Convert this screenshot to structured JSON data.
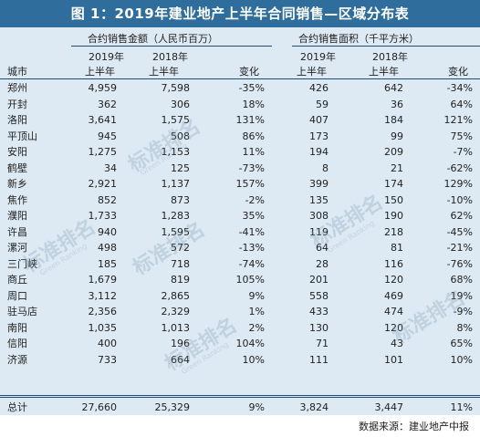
{
  "title": "图 1：2019年建业地产上半年合同销售—区域分布表",
  "headers": {
    "amount_group": "合约销售金额（人民币百万）",
    "area_group": "合约销售面积（千平方米）",
    "col_2019_year": "2019年",
    "col_2018_year": "2018年",
    "half_year": "上半年",
    "city": "城市",
    "change": "变化"
  },
  "rows": [
    {
      "city": "郑州",
      "a2019": "4,959",
      "a2018": "7,598",
      "achg": "-35%",
      "s2019": "426",
      "s2018": "642",
      "schg": "-34%"
    },
    {
      "city": "开封",
      "a2019": "362",
      "a2018": "306",
      "achg": "18%",
      "s2019": "59",
      "s2018": "36",
      "schg": "64%"
    },
    {
      "city": "洛阳",
      "a2019": "3,641",
      "a2018": "1,575",
      "achg": "131%",
      "s2019": "407",
      "s2018": "184",
      "schg": "121%"
    },
    {
      "city": "平顶山",
      "a2019": "945",
      "a2018": "508",
      "achg": "86%",
      "s2019": "173",
      "s2018": "99",
      "schg": "75%"
    },
    {
      "city": "安阳",
      "a2019": "1,275",
      "a2018": "1,153",
      "achg": "11%",
      "s2019": "194",
      "s2018": "209",
      "schg": "-7%"
    },
    {
      "city": "鹤壁",
      "a2019": "34",
      "a2018": "125",
      "achg": "-73%",
      "s2019": "8",
      "s2018": "21",
      "schg": "-62%"
    },
    {
      "city": "新乡",
      "a2019": "2,921",
      "a2018": "1,137",
      "achg": "157%",
      "s2019": "399",
      "s2018": "174",
      "schg": "129%"
    },
    {
      "city": "焦作",
      "a2019": "852",
      "a2018": "873",
      "achg": "-2%",
      "s2019": "135",
      "s2018": "150",
      "schg": "-10%"
    },
    {
      "city": "濮阳",
      "a2019": "1,733",
      "a2018": "1,283",
      "achg": "35%",
      "s2019": "308",
      "s2018": "190",
      "schg": "62%"
    },
    {
      "city": "许昌",
      "a2019": "940",
      "a2018": "1,595",
      "achg": "-41%",
      "s2019": "119",
      "s2018": "218",
      "schg": "-45%"
    },
    {
      "city": "漯河",
      "a2019": "498",
      "a2018": "572",
      "achg": "-13%",
      "s2019": "64",
      "s2018": "81",
      "schg": "-21%"
    },
    {
      "city": "三门峡",
      "a2019": "185",
      "a2018": "718",
      "achg": "-74%",
      "s2019": "28",
      "s2018": "116",
      "schg": "-76%"
    },
    {
      "city": "商丘",
      "a2019": "1,679",
      "a2018": "819",
      "achg": "105%",
      "s2019": "201",
      "s2018": "120",
      "schg": "68%"
    },
    {
      "city": "周口",
      "a2019": "3,112",
      "a2018": "2,865",
      "achg": "9%",
      "s2019": "558",
      "s2018": "469",
      "schg": "19%"
    },
    {
      "city": "驻马店",
      "a2019": "2,356",
      "a2018": "2,329",
      "achg": "1%",
      "s2019": "433",
      "s2018": "474",
      "schg": "-9%"
    },
    {
      "city": "南阳",
      "a2019": "1,035",
      "a2018": "1,013",
      "achg": "2%",
      "s2019": "130",
      "s2018": "120",
      "schg": "8%"
    },
    {
      "city": "信阳",
      "a2019": "400",
      "a2018": "196",
      "achg": "104%",
      "s2019": "71",
      "s2018": "43",
      "schg": "65%"
    },
    {
      "city": "济源",
      "a2019": "733",
      "a2018": "664",
      "achg": "10%",
      "s2019": "111",
      "s2018": "101",
      "schg": "10%"
    }
  ],
  "total": {
    "city": "总计",
    "a2019": "27,660",
    "a2018": "25,329",
    "achg": "9%",
    "s2019": "3,824",
    "s2018": "3,447",
    "schg": "11%"
  },
  "source": "数据来源：建业地产中报",
  "watermark": {
    "text": "标准排名",
    "sub": "Green Ranking"
  },
  "colors": {
    "title_bg": "#2f6e9c",
    "table_bg": "#dde9f3",
    "rule": "#1f4e79"
  }
}
